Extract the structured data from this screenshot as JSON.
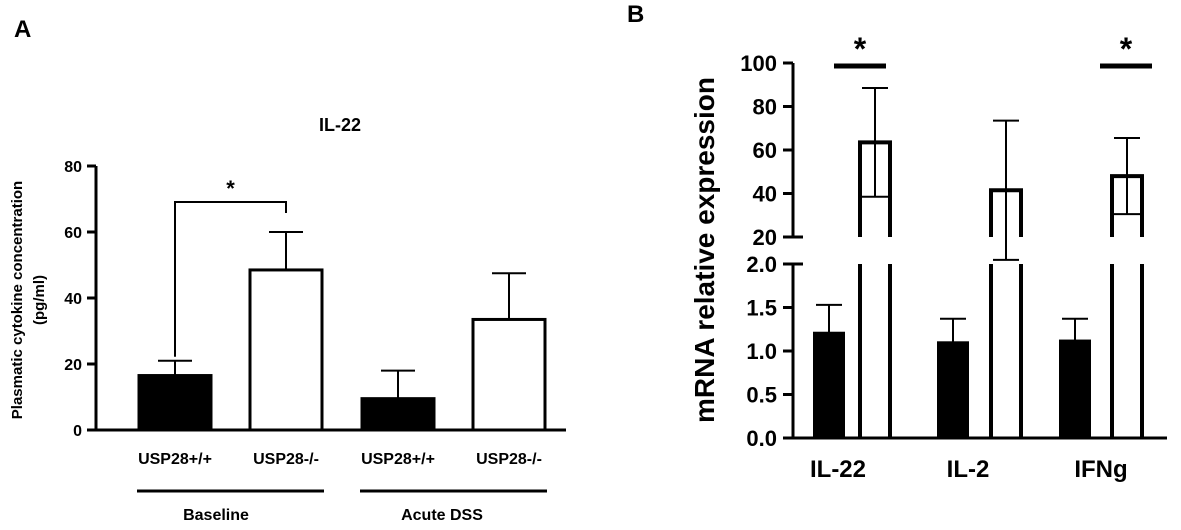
{
  "panels": [
    {
      "letter": "A",
      "chart_data": {
        "type": "bar",
        "title": "IL-22",
        "ylabel_line1": "Plasmatic cytokine concentration",
        "ylabel_line2": "(pg/ml)",
        "ylim": [
          0,
          80
        ],
        "yticks": [
          0,
          20,
          40,
          60,
          80
        ],
        "categories": [
          "USP28+/+",
          "USP28-/-",
          "USP28+/+",
          "USP28-/-"
        ],
        "values": [
          16.5,
          48.5,
          9.5,
          33.5
        ],
        "errors": [
          4.5,
          11.5,
          8.5,
          14
        ],
        "fills": [
          "#000000",
          "#ffffff",
          "#000000",
          "#ffffff"
        ],
        "groups": [
          {
            "label": "Baseline",
            "members": [
              0,
              1
            ]
          },
          {
            "label": "Acute DSS",
            "members": [
              2,
              3
            ]
          }
        ],
        "significance": [
          {
            "from": 0,
            "to": 1,
            "label": "*"
          }
        ]
      }
    },
    {
      "letter": "B",
      "chart_data": {
        "type": "bar",
        "ylabel": "mRNA relative expression",
        "broken_axis": true,
        "lower_range": [
          0,
          2
        ],
        "lower_ticks": [
          "0.0",
          "0.5",
          "1.0",
          "1.5",
          "2.0"
        ],
        "upper_range": [
          20,
          100
        ],
        "upper_ticks": [
          "20",
          "40",
          "60",
          "80",
          "100"
        ],
        "categories": [
          "IL-22",
          "IL-2",
          "IFNg"
        ],
        "series": [
          {
            "fill": "#000000",
            "values": [
              1.21,
              1.1,
              1.12
            ],
            "errors": [
              0.32,
              0.27,
              0.25
            ]
          },
          {
            "fill": "#ffffff",
            "values": [
              63.5,
              41.5,
              48
            ],
            "errors": [
              25,
              32,
              17.5
            ]
          }
        ],
        "significance": [
          {
            "category": 0,
            "label": "*"
          },
          {
            "category": 2,
            "label": "*"
          }
        ]
      }
    }
  ]
}
